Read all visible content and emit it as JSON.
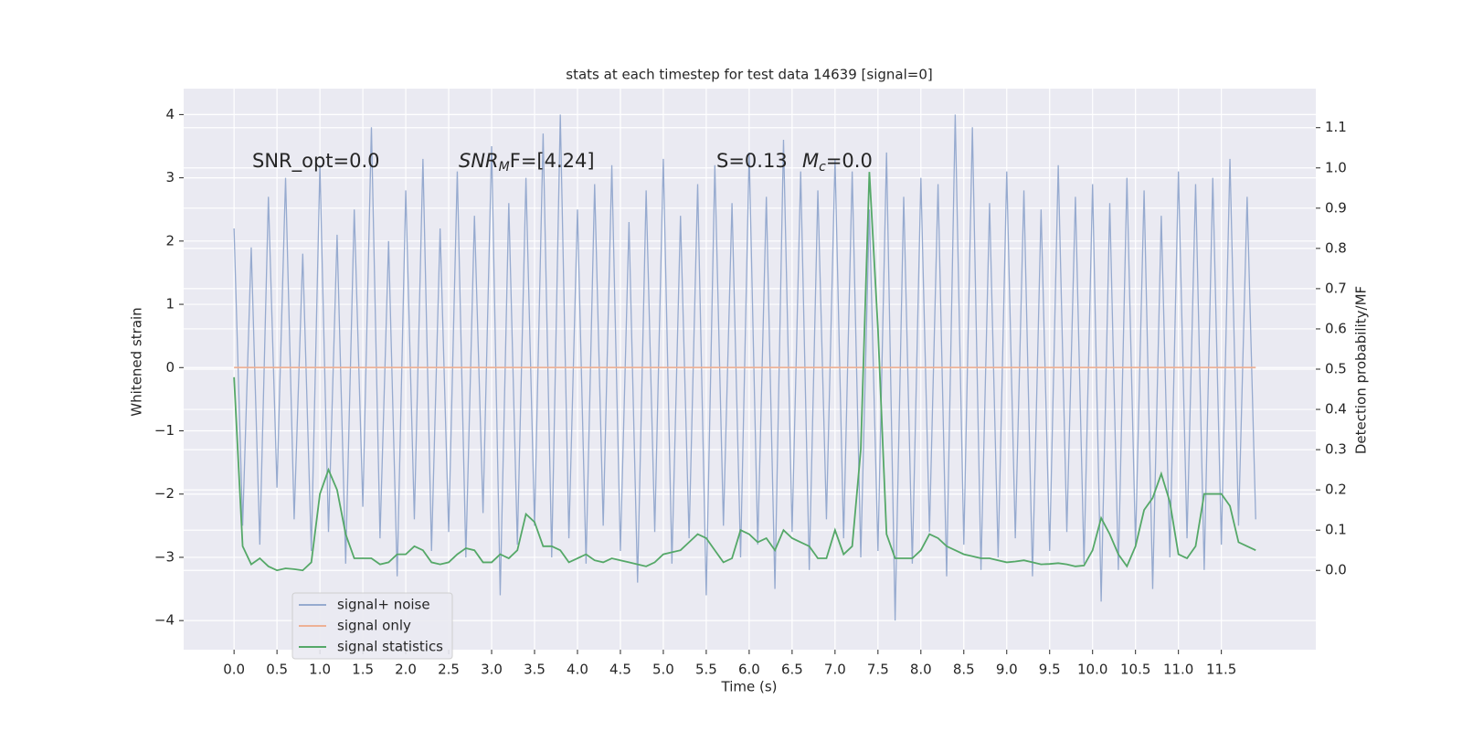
{
  "chart_data": {
    "type": "line",
    "title": "stats at each timestep for test data 14639 [signal=0]",
    "xlabel": "Time (s)",
    "ylabel": "Whitened strain",
    "y2label": "Detection probability/MF",
    "annotations": [
      {
        "text": "SNR_opt=0.0"
      },
      {
        "text": "SNR",
        "sub": "M",
        "after": "F=[4.24]"
      },
      {
        "text": "S=0.13"
      },
      {
        "text": "M",
        "sub": "c",
        "after": "=0.0"
      }
    ],
    "x": [
      0,
      0.1,
      0.2,
      0.3,
      0.4,
      0.5,
      0.6,
      0.7,
      0.8,
      0.9,
      1,
      1.1,
      1.2,
      1.3,
      1.4,
      1.5,
      1.6,
      1.7,
      1.8,
      1.9,
      2,
      2.1,
      2.2,
      2.3,
      2.4,
      2.5,
      2.6,
      2.7,
      2.8,
      2.9,
      3,
      3.1,
      3.2,
      3.3,
      3.4,
      3.5,
      3.6,
      3.7,
      3.8,
      3.9,
      4,
      4.1,
      4.2,
      4.3,
      4.4,
      4.5,
      4.6,
      4.7,
      4.8,
      4.9,
      5,
      5.1,
      5.2,
      5.3,
      5.4,
      5.5,
      5.6,
      5.7,
      5.8,
      5.9,
      6,
      6.1,
      6.2,
      6.3,
      6.4,
      6.5,
      6.6,
      6.7,
      6.8,
      6.9,
      7,
      7.1,
      7.2,
      7.3,
      7.4,
      7.5,
      7.6,
      7.7,
      7.8,
      7.9,
      8,
      8.1,
      8.2,
      8.3,
      8.4,
      8.5,
      8.6,
      8.7,
      8.8,
      8.9,
      9,
      9.1,
      9.2,
      9.3,
      9.4,
      9.5,
      9.6,
      9.7,
      9.8,
      9.9,
      10,
      10.1,
      10.2,
      10.3,
      10.4,
      10.5,
      10.6,
      10.7,
      10.8,
      10.9,
      11,
      11.1,
      11.2,
      11.3,
      11.4,
      11.5,
      11.6,
      11.7,
      11.8,
      11.9
    ],
    "series": [
      {
        "name": "signal+ noise",
        "color": "#96aacf",
        "axis": "y",
        "values": [
          2.2,
          -2.5,
          1.9,
          -2.8,
          2.7,
          -1.9,
          3.0,
          -2.4,
          1.8,
          -2.9,
          3.2,
          -2.6,
          2.1,
          -3.1,
          2.5,
          -2.2,
          3.8,
          -2.7,
          2.0,
          -3.3,
          2.8,
          -2.4,
          3.3,
          -2.9,
          2.2,
          -2.6,
          3.1,
          -3.0,
          2.4,
          -2.3,
          3.5,
          -3.6,
          2.6,
          -2.8,
          3.0,
          -2.5,
          3.7,
          -3.0,
          4.0,
          -2.7,
          2.5,
          -3.1,
          2.9,
          -2.5,
          3.2,
          -2.9,
          2.3,
          -3.4,
          2.8,
          -2.6,
          3.3,
          -3.1,
          2.4,
          -2.7,
          2.9,
          -3.6,
          3.2,
          -2.5,
          2.6,
          -3.0,
          3.4,
          -2.8,
          2.7,
          -3.5,
          3.6,
          -2.6,
          3.1,
          -3.2,
          2.8,
          -2.4,
          3.3,
          -2.7,
          3.1,
          -3.0,
          2.5,
          -2.9,
          3.4,
          -4.0,
          2.7,
          -3.1,
          3.0,
          -2.6,
          2.9,
          -3.3,
          4.0,
          -2.8,
          3.8,
          -3.2,
          2.6,
          -3.0,
          3.1,
          -2.7,
          2.8,
          -3.3,
          2.5,
          -2.9,
          3.2,
          -2.6,
          2.7,
          -3.1,
          2.9,
          -3.7,
          2.6,
          -3.2,
          3.0,
          -2.8,
          2.8,
          -3.5,
          2.4,
          -3.0,
          3.1,
          -2.7,
          2.9,
          -3.2,
          3.0,
          -2.8,
          3.3,
          -2.5,
          2.7,
          -2.4
        ]
      },
      {
        "name": "signal only",
        "color": "#eeb195",
        "axis": "y",
        "values": [
          0,
          0,
          0,
          0,
          0,
          0,
          0,
          0,
          0,
          0,
          0,
          0,
          0,
          0,
          0,
          0,
          0,
          0,
          0,
          0,
          0,
          0,
          0,
          0,
          0,
          0,
          0,
          0,
          0,
          0,
          0,
          0,
          0,
          0,
          0,
          0,
          0,
          0,
          0,
          0,
          0,
          0,
          0,
          0,
          0,
          0,
          0,
          0,
          0,
          0,
          0,
          0,
          0,
          0,
          0,
          0,
          0,
          0,
          0,
          0,
          0,
          0,
          0,
          0,
          0,
          0,
          0,
          0,
          0,
          0,
          0,
          0,
          0,
          0,
          0,
          0,
          0,
          0,
          0,
          0,
          0,
          0,
          0,
          0,
          0,
          0,
          0,
          0,
          0,
          0,
          0,
          0,
          0,
          0,
          0,
          0,
          0,
          0,
          0,
          0,
          0,
          0,
          0,
          0,
          0,
          0,
          0,
          0,
          0,
          0,
          0,
          0,
          0,
          0,
          0,
          0,
          0,
          0,
          0,
          0
        ]
      },
      {
        "name": "signal statistics",
        "color": "#55a868",
        "axis": "y2",
        "values": [
          0.48,
          0.06,
          0.015,
          0.03,
          0.01,
          0.0,
          0.005,
          0.003,
          0.0,
          0.02,
          0.19,
          0.25,
          0.2,
          0.09,
          0.03,
          0.03,
          0.03,
          0.015,
          0.02,
          0.04,
          0.04,
          0.06,
          0.05,
          0.02,
          0.015,
          0.02,
          0.04,
          0.055,
          0.05,
          0.02,
          0.02,
          0.04,
          0.03,
          0.05,
          0.14,
          0.12,
          0.06,
          0.06,
          0.05,
          0.02,
          0.03,
          0.04,
          0.025,
          0.02,
          0.03,
          0.025,
          0.02,
          0.015,
          0.01,
          0.02,
          0.04,
          0.045,
          0.05,
          0.07,
          0.09,
          0.08,
          0.05,
          0.02,
          0.03,
          0.1,
          0.09,
          0.07,
          0.08,
          0.05,
          0.1,
          0.08,
          0.07,
          0.06,
          0.03,
          0.03,
          0.1,
          0.04,
          0.06,
          0.3,
          0.99,
          0.6,
          0.09,
          0.03,
          0.03,
          0.03,
          0.05,
          0.09,
          0.08,
          0.06,
          0.05,
          0.04,
          0.035,
          0.03,
          0.03,
          0.025,
          0.02,
          0.022,
          0.025,
          0.02,
          0.015,
          0.016,
          0.018,
          0.015,
          0.01,
          0.012,
          0.05,
          0.13,
          0.09,
          0.04,
          0.01,
          0.06,
          0.15,
          0.18,
          0.24,
          0.17,
          0.04,
          0.03,
          0.06,
          0.19,
          0.19,
          0.19,
          0.16,
          0.07,
          0.06,
          0.05
        ]
      }
    ],
    "xlim": [
      -0.587,
      12.6
    ],
    "ylim": [
      -4.46,
      4.41
    ],
    "y2lim": [
      -0.197,
      1.197
    ],
    "xticks": [
      {
        "value": 0,
        "label": "0.0"
      },
      {
        "value": 0.5,
        "label": "0.5"
      },
      {
        "value": 1,
        "label": "1.0"
      },
      {
        "value": 1.5,
        "label": "1.5"
      },
      {
        "value": 2,
        "label": "2.0"
      },
      {
        "value": 2.5,
        "label": "2.5"
      },
      {
        "value": 3,
        "label": "3.0"
      },
      {
        "value": 3.5,
        "label": "3.5"
      },
      {
        "value": 4,
        "label": "4.0"
      },
      {
        "value": 4.5,
        "label": "4.5"
      },
      {
        "value": 5,
        "label": "5.0"
      },
      {
        "value": 5.5,
        "label": "5.5"
      },
      {
        "value": 6,
        "label": "6.0"
      },
      {
        "value": 6.5,
        "label": "6.5"
      },
      {
        "value": 7,
        "label": "7.0"
      },
      {
        "value": 7.5,
        "label": "7.5"
      },
      {
        "value": 8,
        "label": "8.0"
      },
      {
        "value": 8.5,
        "label": "8.5"
      },
      {
        "value": 9,
        "label": "9.0"
      },
      {
        "value": 9.5,
        "label": "9.5"
      },
      {
        "value": 10,
        "label": "10.0"
      },
      {
        "value": 10.5,
        "label": "10.5"
      },
      {
        "value": 11,
        "label": "11.0"
      },
      {
        "value": 11.5,
        "label": "11.5"
      }
    ],
    "yticks": [
      {
        "value": -4,
        "label": "−4"
      },
      {
        "value": -3,
        "label": "−3"
      },
      {
        "value": -2,
        "label": "−2"
      },
      {
        "value": -1,
        "label": "−1"
      },
      0,
      1,
      2,
      3,
      4
    ],
    "y2ticks": [
      {
        "value": 0,
        "label": "0.0"
      },
      {
        "value": 0.1,
        "label": "0.1"
      },
      {
        "value": 0.2,
        "label": "0.2"
      },
      {
        "value": 0.3,
        "label": "0.3"
      },
      {
        "value": 0.4,
        "label": "0.4"
      },
      {
        "value": 0.5,
        "label": "0.5"
      },
      {
        "value": 0.6,
        "label": "0.6"
      },
      {
        "value": 0.7,
        "label": "0.7"
      },
      {
        "value": 0.8,
        "label": "0.8"
      },
      {
        "value": 0.9,
        "label": "0.9"
      },
      {
        "value": 1,
        "label": "1.0"
      },
      {
        "value": 1.1,
        "label": "1.1"
      }
    ],
    "grid": true,
    "legend": "lower left",
    "background": "#eaeaf2"
  }
}
